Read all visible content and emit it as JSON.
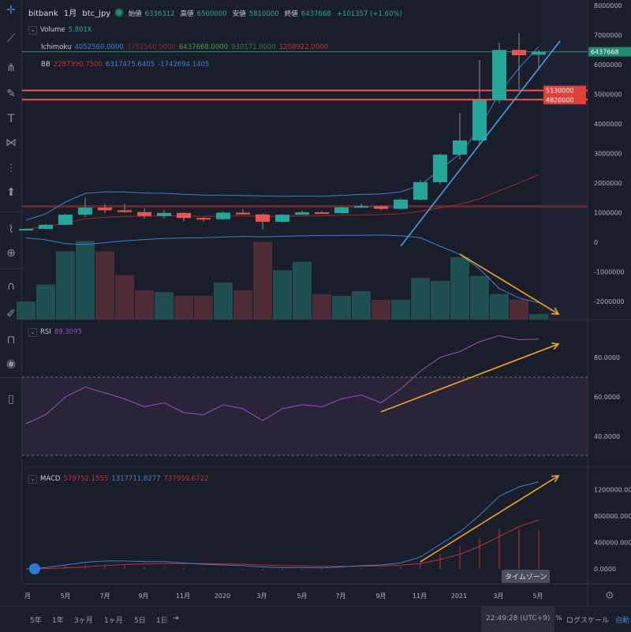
{
  "header": {
    "exchange": "bitbank",
    "interval": "1月",
    "symbol": "btc_jpy",
    "open_label": "始値",
    "open": "6336312",
    "high_label": "高値",
    "high": "6500000",
    "low_label": "安値",
    "low": "5810000",
    "close_label": "終値",
    "close": "6437668",
    "change": "+101357 (+1.60%)"
  },
  "indicators": {
    "volume": {
      "label": "Volume",
      "value": "5.801K"
    },
    "ichimoku": {
      "label": "Ichimoku",
      "v1": "4052560.0000",
      "v2": "3752560.0000",
      "v3": "6437668.0000",
      "v4": "930171.0000",
      "v5": "1208922.0000"
    },
    "bb": {
      "label": "BB",
      "v1": "2287390.7500",
      "v2": "6317475.6405",
      "v3": "-1742694.1405"
    },
    "rsi": {
      "label": "RSI",
      "value": "89.3095"
    },
    "macd": {
      "label": "MACD",
      "v1": "579752.1555",
      "v2": "1317711.8277",
      "v3": "737959.6722"
    }
  },
  "price_axis": {
    "ticks": [
      "8000000",
      "7000000",
      "6000000",
      "5000000",
      "4000000",
      "3000000",
      "2000000",
      "1000000",
      "0",
      "-1000000",
      "-2000000"
    ],
    "last_price": "6437668",
    "level1": "5130000",
    "level2": "4820000"
  },
  "rsi_axis": {
    "ticks": [
      "80.0000",
      "60.0000",
      "40.0000"
    ]
  },
  "macd_axis": {
    "ticks": [
      "1200000.0000",
      "800000.0000",
      "400000.0000",
      "0.0000"
    ]
  },
  "time_axis": {
    "labels": [
      "月",
      "5月",
      "7月",
      "9月",
      "11月",
      "2020",
      "3月",
      "5月",
      "7月",
      "9月",
      "11月",
      "2021",
      "3月",
      "5月"
    ],
    "timezone_tooltip": "タイムゾーン"
  },
  "toolbar": {
    "icons": [
      "crosshair-icon",
      "trend-line-icon",
      "fork-icon",
      "brush-icon",
      "text-icon",
      "pattern-icon",
      "measure-icon",
      "arrow-up-icon",
      "ruler-icon",
      "zoom-in-icon",
      "magnet-icon",
      "lock-drawing-icon",
      "unlock-icon",
      "eye-icon",
      "trash-icon"
    ]
  },
  "bottom": {
    "ranges": [
      "5年",
      "1年",
      "3ヶ月",
      "1ヶ月",
      "5日",
      "1日"
    ],
    "goto": "⇥",
    "time": "22:49:28 (UTC+9)",
    "percent": "%",
    "log": "ログスケール",
    "auto": "自動"
  },
  "colors": {
    "up": "#26a69a",
    "down": "#ef5350",
    "level": "#f0534f",
    "trend": "#4aa3f0",
    "arrow": "#f5a623",
    "rsi": "#9c4dc4",
    "macd": "#3d7fd6",
    "signal": "#c0302e"
  },
  "chart_data": [
    {
      "type": "candlestick",
      "title": "btc_jpy 1月",
      "x": [
        "2019-03",
        "2019-04",
        "2019-05",
        "2019-06",
        "2019-07",
        "2019-08",
        "2019-09",
        "2019-10",
        "2019-11",
        "2019-12",
        "2020-01",
        "2020-02",
        "2020-03",
        "2020-04",
        "2020-05",
        "2020-06",
        "2020-07",
        "2020-08",
        "2020-09",
        "2020-10",
        "2020-11",
        "2020-12",
        "2021-01",
        "2021-02",
        "2021-03",
        "2021-04",
        "2021-05"
      ],
      "open": [
        420000,
        450000,
        590000,
        930000,
        1170000,
        1080000,
        1020000,
        890000,
        990000,
        820000,
        780000,
        1000000,
        940000,
        690000,
        930000,
        1010000,
        980000,
        1180000,
        1220000,
        1130000,
        1440000,
        2030000,
        2960000,
        3440000,
        4800000,
        6500000,
        6336312
      ],
      "high": [
        460000,
        620000,
        960000,
        1500000,
        1300000,
        1300000,
        1150000,
        1100000,
        1010000,
        850000,
        1030000,
        1120000,
        970000,
        950000,
        1070000,
        1050000,
        1200000,
        1300000,
        1250000,
        1470000,
        2100000,
        3000000,
        4370000,
        6160000,
        6750000,
        7070000,
        6500000
      ],
      "low": [
        400000,
        440000,
        570000,
        850000,
        980000,
        980000,
        800000,
        800000,
        700000,
        700000,
        750000,
        930000,
        430000,
        660000,
        930000,
        960000,
        970000,
        1170000,
        1080000,
        1120000,
        1400000,
        1950000,
        2800000,
        3300000,
        4700000,
        5170000,
        5810000
      ],
      "close": [
        450000,
        590000,
        930000,
        1170000,
        1080000,
        1020000,
        890000,
        990000,
        820000,
        780000,
        1000000,
        940000,
        690000,
        930000,
        1010000,
        980000,
        1180000,
        1220000,
        1130000,
        1440000,
        2030000,
        2960000,
        3440000,
        4800000,
        6500000,
        6320000,
        6437668
      ],
      "volume_k": [
        19,
        37,
        72,
        83,
        72,
        47,
        31,
        29,
        25,
        25,
        39,
        31,
        82,
        52,
        61,
        27,
        25,
        30,
        21,
        21,
        44,
        41,
        66,
        46,
        27,
        21,
        5.8
      ],
      "ylim": [
        -2000000,
        8000000
      ]
    },
    {
      "type": "line",
      "name": "RSI",
      "ylim": [
        25,
        100
      ],
      "levels": [
        70,
        30
      ],
      "values": [
        46.4,
        51,
        60,
        65,
        62,
        59,
        55,
        57,
        52,
        51,
        56,
        54,
        48,
        54,
        56,
        55,
        59,
        61,
        57,
        64,
        73,
        80,
        83,
        88,
        91,
        89,
        89.3
      ]
    },
    {
      "type": "line",
      "name": "MACD",
      "ylim": [
        -100000,
        1500000
      ],
      "macd": [
        0,
        20000,
        60000,
        100000,
        120000,
        120000,
        110000,
        110000,
        90000,
        70000,
        60000,
        50000,
        30000,
        20000,
        20000,
        15000,
        30000,
        50000,
        60000,
        90000,
        180000,
        370000,
        560000,
        810000,
        1100000,
        1240000,
        1317711
      ],
      "signal": [
        0,
        5000,
        15000,
        30000,
        50000,
        65000,
        75000,
        80000,
        80000,
        80000,
        75000,
        70000,
        60000,
        50000,
        45000,
        40000,
        38000,
        40000,
        45000,
        55000,
        80000,
        140000,
        220000,
        340000,
        490000,
        640000,
        737959
      ]
    }
  ]
}
